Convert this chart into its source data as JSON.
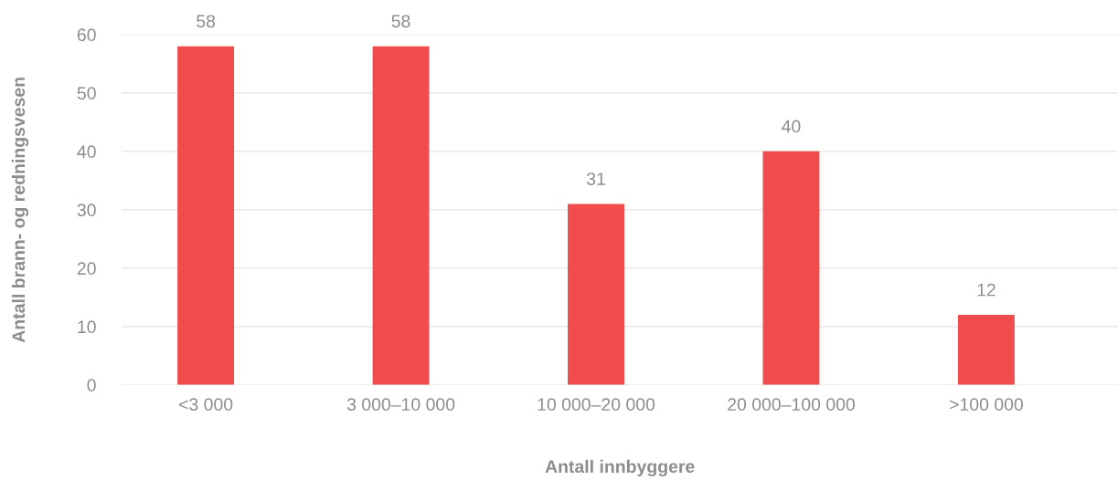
{
  "chart_data": {
    "type": "bar",
    "xlabel": "Antall innbyggere",
    "ylabel": "Antall brann- og redningsvesen",
    "categories": [
      "<3 000",
      "3 000–10 000",
      "10 000–20 000",
      "20 000–100 000",
      ">100 000"
    ],
    "values": [
      58,
      58,
      31,
      40,
      12
    ],
    "color": "#ef4c4b",
    "ylim": [
      0,
      60
    ],
    "yticks": [
      0,
      10,
      20,
      30,
      40,
      50,
      60
    ],
    "grid": "y",
    "data_labels": true
  }
}
